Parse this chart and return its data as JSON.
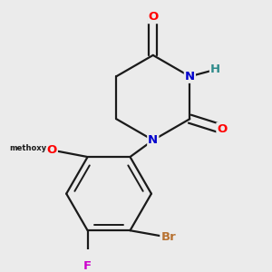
{
  "background_color": "#ebebeb",
  "bond_color": "#1a1a1a",
  "atom_colors": {
    "O": "#ff0000",
    "N": "#0000cd",
    "H": "#2e8b8b",
    "Br": "#b87333",
    "F": "#cc00cc",
    "C": "#1a1a1a"
  },
  "figsize": [
    3.0,
    3.0
  ],
  "dpi": 100
}
